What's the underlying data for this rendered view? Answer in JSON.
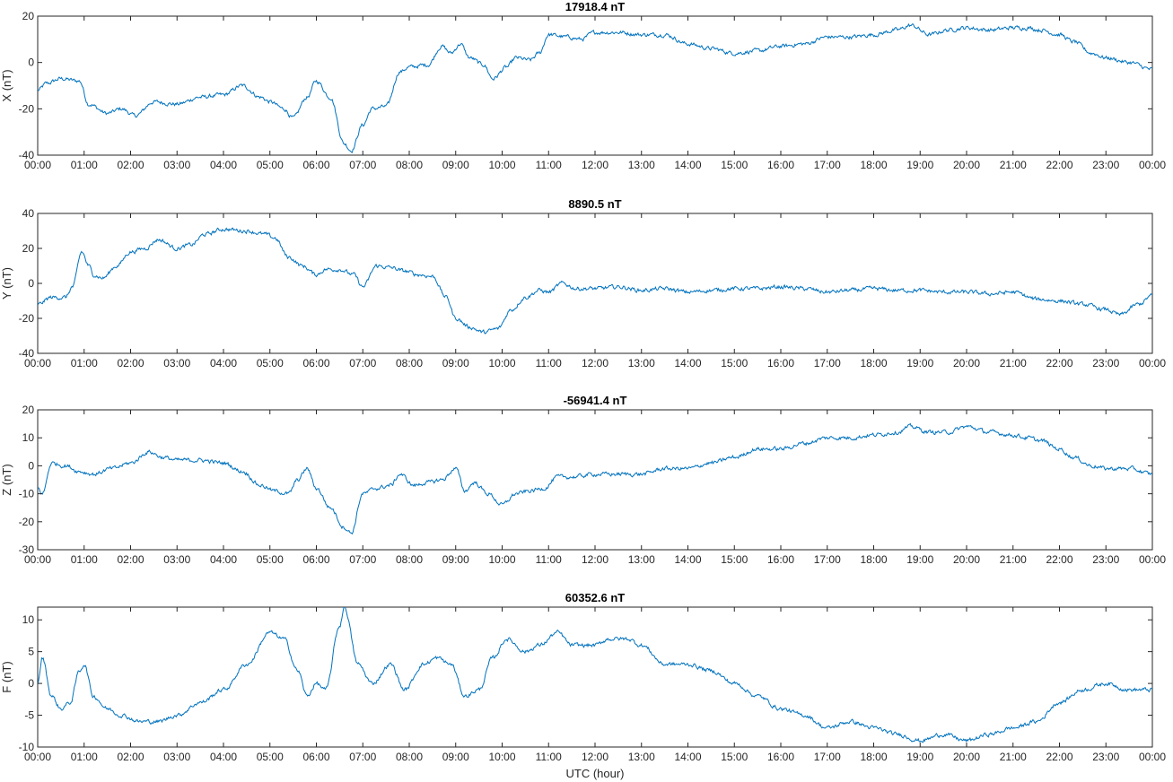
{
  "chart_data": [
    {
      "type": "line",
      "title": "17918.4 nT",
      "ylabel": "X (nT)",
      "xlabel": "",
      "x_unit": "hour",
      "xlim": [
        0,
        24
      ],
      "ylim": [
        -40,
        20
      ],
      "yticks": [
        -40,
        -20,
        0,
        20
      ],
      "xtick_labels": [
        "00:00",
        "01:00",
        "02:00",
        "03:00",
        "04:00",
        "05:00",
        "06:00",
        "07:00",
        "08:00",
        "09:00",
        "10:00",
        "11:00",
        "12:00",
        "13:00",
        "14:00",
        "15:00",
        "16:00",
        "17:00",
        "18:00",
        "19:00",
        "20:00",
        "21:00",
        "22:00",
        "23:00",
        "00:00"
      ],
      "color": "#0072BD",
      "series": [
        {
          "x": [
            0,
            0.2,
            0.5,
            0.9,
            1.1,
            1.5,
            1.8,
            2.1,
            2.5,
            3.0,
            3.5,
            4.0,
            4.4,
            4.8,
            5.0,
            5.3,
            5.5,
            5.8,
            6.0,
            6.3,
            6.6,
            6.75,
            7.0,
            7.2,
            7.5,
            7.8,
            8.0,
            8.4,
            8.7,
            8.9,
            9.1,
            9.3,
            9.6,
            9.8,
            10.1,
            10.3,
            10.6,
            10.8,
            11.0,
            11.4,
            11.7,
            12.0,
            12.5,
            13.0,
            13.5,
            14.0,
            14.5,
            15.0,
            15.5,
            16.0,
            16.5,
            17.0,
            17.5,
            18.0,
            18.5,
            18.8,
            19.2,
            19.6,
            20.0,
            20.5,
            21.0,
            21.3,
            21.6,
            22.0,
            22.3,
            22.7,
            23.0,
            23.5,
            24.0
          ],
          "y": [
            -12,
            -9,
            -7,
            -8,
            -18,
            -22,
            -20,
            -23,
            -17,
            -18,
            -15,
            -14,
            -10,
            -15,
            -17,
            -20,
            -24,
            -15,
            -8,
            -15,
            -35,
            -38,
            -27,
            -20,
            -19,
            -4,
            -2,
            -1,
            7,
            4,
            8,
            2,
            -1,
            -7,
            -2,
            2,
            1,
            4,
            12,
            11,
            10,
            13,
            13,
            12,
            12,
            8,
            6,
            4,
            5,
            7,
            8,
            11,
            11,
            12,
            14,
            16,
            12,
            14,
            15,
            14,
            15,
            15,
            14,
            12,
            9,
            4,
            2,
            0,
            -3
          ]
        }
      ]
    },
    {
      "type": "line",
      "title": "8890.5 nT",
      "ylabel": "Y (nT)",
      "xlabel": "",
      "x_unit": "hour",
      "xlim": [
        0,
        24
      ],
      "ylim": [
        -40,
        40
      ],
      "yticks": [
        -40,
        -20,
        0,
        20,
        40
      ],
      "xtick_labels": [
        "00:00",
        "01:00",
        "02:00",
        "03:00",
        "04:00",
        "05:00",
        "06:00",
        "07:00",
        "08:00",
        "09:00",
        "10:00",
        "11:00",
        "12:00",
        "13:00",
        "14:00",
        "15:00",
        "16:00",
        "17:00",
        "18:00",
        "19:00",
        "20:00",
        "21:00",
        "22:00",
        "23:00",
        "00:00"
      ],
      "color": "#0072BD",
      "series": [
        {
          "x": [
            0,
            0.3,
            0.6,
            0.75,
            0.95,
            1.1,
            1.2,
            1.4,
            1.7,
            2.0,
            2.3,
            2.6,
            3.0,
            3.3,
            3.6,
            4.0,
            4.5,
            4.9,
            5.1,
            5.4,
            5.7,
            6.0,
            6.2,
            6.5,
            6.8,
            7.0,
            7.3,
            7.6,
            7.9,
            8.2,
            8.5,
            8.8,
            9.0,
            9.3,
            9.6,
            9.9,
            10.2,
            10.5,
            10.8,
            11.0,
            11.3,
            11.6,
            12.0,
            12.5,
            13.0,
            13.5,
            14.0,
            14.5,
            15.0,
            15.5,
            16.0,
            16.5,
            17.0,
            17.5,
            18.0,
            18.5,
            19.0,
            19.5,
            20.0,
            20.5,
            21.0,
            21.5,
            22.0,
            22.5,
            23.0,
            23.3,
            23.7,
            24.0
          ],
          "y": [
            -12,
            -8,
            -8,
            -2,
            18,
            10,
            5,
            3,
            10,
            18,
            20,
            25,
            20,
            22,
            28,
            31,
            30,
            28,
            26,
            15,
            10,
            5,
            8,
            8,
            5,
            -2,
            10,
            9,
            7,
            5,
            4,
            -8,
            -20,
            -25,
            -28,
            -26,
            -15,
            -8,
            -4,
            -5,
            0,
            -3,
            -3,
            -2,
            -4,
            -3,
            -5,
            -4,
            -3,
            -3,
            -2,
            -3,
            -5,
            -4,
            -3,
            -4,
            -4,
            -5,
            -5,
            -6,
            -5,
            -9,
            -10,
            -12,
            -15,
            -18,
            -12,
            -7
          ]
        }
      ]
    },
    {
      "type": "line",
      "title": "-56941.4 nT",
      "ylabel": "Z (nT)",
      "xlabel": "",
      "x_unit": "hour",
      "xlim": [
        0,
        24
      ],
      "ylim": [
        -30,
        20
      ],
      "yticks": [
        -30,
        -20,
        -10,
        0,
        10,
        20
      ],
      "xtick_labels": [
        "00:00",
        "01:00",
        "02:00",
        "03:00",
        "04:00",
        "05:00",
        "06:00",
        "07:00",
        "08:00",
        "09:00",
        "10:00",
        "11:00",
        "12:00",
        "13:00",
        "14:00",
        "15:00",
        "16:00",
        "17:00",
        "18:00",
        "19:00",
        "20:00",
        "21:00",
        "22:00",
        "23:00",
        "00:00"
      ],
      "color": "#0072BD",
      "series": [
        {
          "x": [
            0,
            0.1,
            0.3,
            0.6,
            0.9,
            1.2,
            1.6,
            2.0,
            2.4,
            2.7,
            3.0,
            3.5,
            4.0,
            4.4,
            4.8,
            5.1,
            5.4,
            5.6,
            5.8,
            6.0,
            6.3,
            6.6,
            6.75,
            7.0,
            7.3,
            7.6,
            7.8,
            8.1,
            8.4,
            8.7,
            9.0,
            9.2,
            9.4,
            9.7,
            10.0,
            10.3,
            10.6,
            10.9,
            11.2,
            11.5,
            12.0,
            12.5,
            13.0,
            13.5,
            14.0,
            14.5,
            15.0,
            15.5,
            16.0,
            16.5,
            17.0,
            17.5,
            18.0,
            18.5,
            18.8,
            19.2,
            19.6,
            20.0,
            20.5,
            21.0,
            21.3,
            21.6,
            22.0,
            22.3,
            22.7,
            23.0,
            23.5,
            24.0
          ],
          "y": [
            -8,
            -10,
            1,
            0,
            -2,
            -3,
            -1,
            1,
            5,
            3,
            2,
            2,
            1,
            -2,
            -7,
            -9,
            -10,
            -5,
            -1,
            -8,
            -15,
            -22,
            -24,
            -10,
            -8,
            -7,
            -3,
            -7,
            -6,
            -5,
            -1,
            -9,
            -6,
            -10,
            -14,
            -10,
            -9,
            -8,
            -4,
            -4,
            -3,
            -3,
            -3,
            -1,
            -1,
            1,
            3,
            6,
            6,
            8,
            10,
            10,
            11,
            12,
            14,
            12,
            12,
            14,
            12,
            11,
            10,
            9,
            6,
            3,
            0,
            -1,
            -1,
            -3
          ]
        }
      ]
    },
    {
      "type": "line",
      "title": "60352.6 nT",
      "ylabel": "F (nT)",
      "xlabel": "UTC (hour)",
      "x_unit": "hour",
      "xlim": [
        0,
        24
      ],
      "ylim": [
        -10,
        12
      ],
      "yticks": [
        -10,
        -5,
        0,
        5,
        10
      ],
      "xtick_labels": [
        "00:00",
        "01:00",
        "02:00",
        "03:00",
        "04:00",
        "05:00",
        "06:00",
        "07:00",
        "08:00",
        "09:00",
        "10:00",
        "11:00",
        "12:00",
        "13:00",
        "14:00",
        "15:00",
        "16:00",
        "17:00",
        "18:00",
        "19:00",
        "20:00",
        "21:00",
        "22:00",
        "23:00",
        "00:00"
      ],
      "color": "#0072BD",
      "series": [
        {
          "x": [
            0,
            0.1,
            0.3,
            0.5,
            0.7,
            0.9,
            1.0,
            1.2,
            1.5,
            1.8,
            2.2,
            2.6,
            3.0,
            3.5,
            4.0,
            4.5,
            5.0,
            5.3,
            5.6,
            5.8,
            6.0,
            6.2,
            6.5,
            6.6,
            6.9,
            7.2,
            7.6,
            7.9,
            8.3,
            8.6,
            8.9,
            9.2,
            9.5,
            9.8,
            10.1,
            10.5,
            10.8,
            11.2,
            11.5,
            12.0,
            12.3,
            12.7,
            13.0,
            13.5,
            14.0,
            14.5,
            15.0,
            15.5,
            16.0,
            16.5,
            17.0,
            17.5,
            18.0,
            18.5,
            19.0,
            19.5,
            20.0,
            20.5,
            21.0,
            21.5,
            22.0,
            22.5,
            23.0,
            23.5,
            24.0
          ],
          "y": [
            0,
            4,
            -2,
            -4,
            -3,
            2,
            3,
            -2,
            -4,
            -5,
            -6,
            -6,
            -5,
            -3,
            -1,
            3,
            8,
            7,
            2,
            -2,
            0,
            -1,
            9,
            12,
            3,
            0,
            3,
            -1,
            3,
            4,
            3,
            -2,
            -1,
            4,
            7,
            5,
            6,
            8,
            6,
            6,
            7,
            7,
            6,
            3,
            3,
            2,
            0,
            -2,
            -4,
            -5,
            -7,
            -6,
            -7,
            -8,
            -9,
            -8,
            -9,
            -8,
            -7,
            -6,
            -3,
            -1,
            0,
            -1,
            -1
          ]
        }
      ]
    }
  ]
}
